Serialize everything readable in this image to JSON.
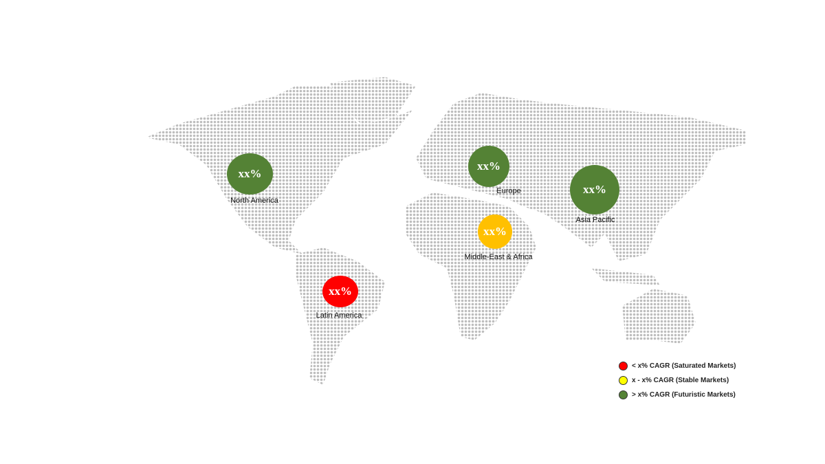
{
  "colors": {
    "futuristic": "#548235",
    "saturated": "#ff0000",
    "stable_bubble": "#ffc000",
    "stable_legend": "#ffff00",
    "map_dots": "#bdbdbd"
  },
  "regions": [
    {
      "name": "North America",
      "value": "xx%",
      "category": "futuristic"
    },
    {
      "name": "Europe",
      "value": "xx%",
      "category": "futuristic"
    },
    {
      "name": "Asia Pacific",
      "value": "xx%",
      "category": "futuristic"
    },
    {
      "name": "Middle-East & Africa",
      "value": "xx%",
      "category": "stable"
    },
    {
      "name": "Latin America",
      "value": "xx%",
      "category": "saturated"
    }
  ],
  "legend": [
    {
      "label": "< x% CAGR (Saturated Markets)",
      "color": "#ff0000"
    },
    {
      "label": "x - x% CAGR (Stable Markets)",
      "color": "#ffff00"
    },
    {
      "label": "> x% CAGR (Futuristic Markets)",
      "color": "#548235"
    }
  ]
}
